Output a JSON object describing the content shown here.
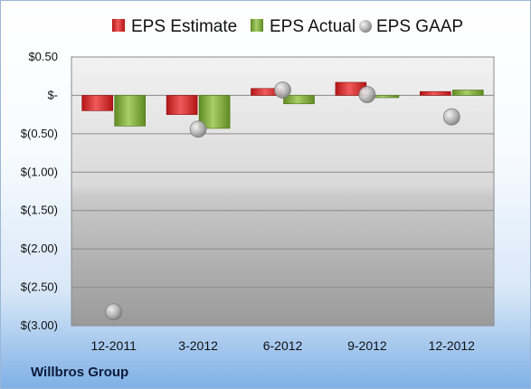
{
  "company": "Willbros Group",
  "colors": {
    "estimate": "#d42a2a",
    "actual": "#7ea83a",
    "gaap": "#a9a9a9"
  },
  "chart_data": {
    "type": "bar",
    "categories": [
      "12-2011",
      "3-2012",
      "6-2012",
      "9-2012",
      "12-2012"
    ],
    "series": [
      {
        "name": "EPS Estimate",
        "kind": "bar",
        "values": [
          -0.2,
          -0.25,
          0.09,
          0.17,
          0.05
        ]
      },
      {
        "name": "EPS Actual",
        "kind": "bar",
        "values": [
          -0.4,
          -0.43,
          -0.11,
          -0.03,
          0.07
        ]
      },
      {
        "name": "EPS GAAP",
        "kind": "scatter",
        "values": [
          -2.82,
          -0.44,
          0.07,
          0.01,
          -0.28
        ]
      }
    ],
    "ylim": [
      -3.0,
      0.5
    ],
    "yticks": [
      0.5,
      0,
      -0.5,
      -1.0,
      -1.5,
      -2.0,
      -2.5,
      -3.0
    ],
    "ytick_labels": [
      "$0.50",
      "$-",
      "$(0.50)",
      "$(1.00)",
      "$(1.50)",
      "$(2.00)",
      "$(2.50)",
      "$(3.00)"
    ],
    "grid": true,
    "legend": "top"
  }
}
